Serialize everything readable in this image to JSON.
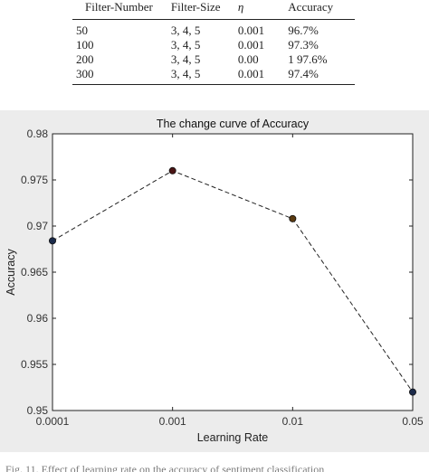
{
  "table": {
    "headers": [
      "Filter-Number",
      "Filter-Size",
      "η",
      "Accuracy"
    ],
    "rows": [
      [
        "50",
        "3, 4, 5",
        "0.001",
        "96.7%"
      ],
      [
        "100",
        "3, 4, 5",
        "0.001",
        "97.3%"
      ],
      [
        "200",
        "3, 4, 5",
        "0.00",
        "1 97.6%"
      ],
      [
        "300",
        "3, 4, 5",
        "0.001",
        "97.4%"
      ]
    ]
  },
  "chart_data": {
    "type": "line",
    "title": "The change curve of Accuracy",
    "xlabel": "Learning Rate",
    "ylabel": "Accuracy",
    "categories": [
      "0.0001",
      "0.001",
      "0.01",
      "0.05"
    ],
    "series": [
      {
        "values": [
          0.9684,
          0.976,
          0.9708,
          0.952
        ]
      }
    ],
    "ylim": [
      0.95,
      0.98
    ],
    "yticks": [
      "0.95",
      "0.955",
      "0.96",
      "0.965",
      "0.97",
      "0.975",
      "0.98"
    ],
    "line_style": "dashed",
    "grid": false,
    "marker_colors": [
      "#1b2a4a",
      "#4a1414",
      "#5a3a10",
      "#1b2a4a"
    ]
  },
  "caption": {
    "text": "Fig. 11. Effect of learning rate on the accuracy of sentiment classification"
  }
}
